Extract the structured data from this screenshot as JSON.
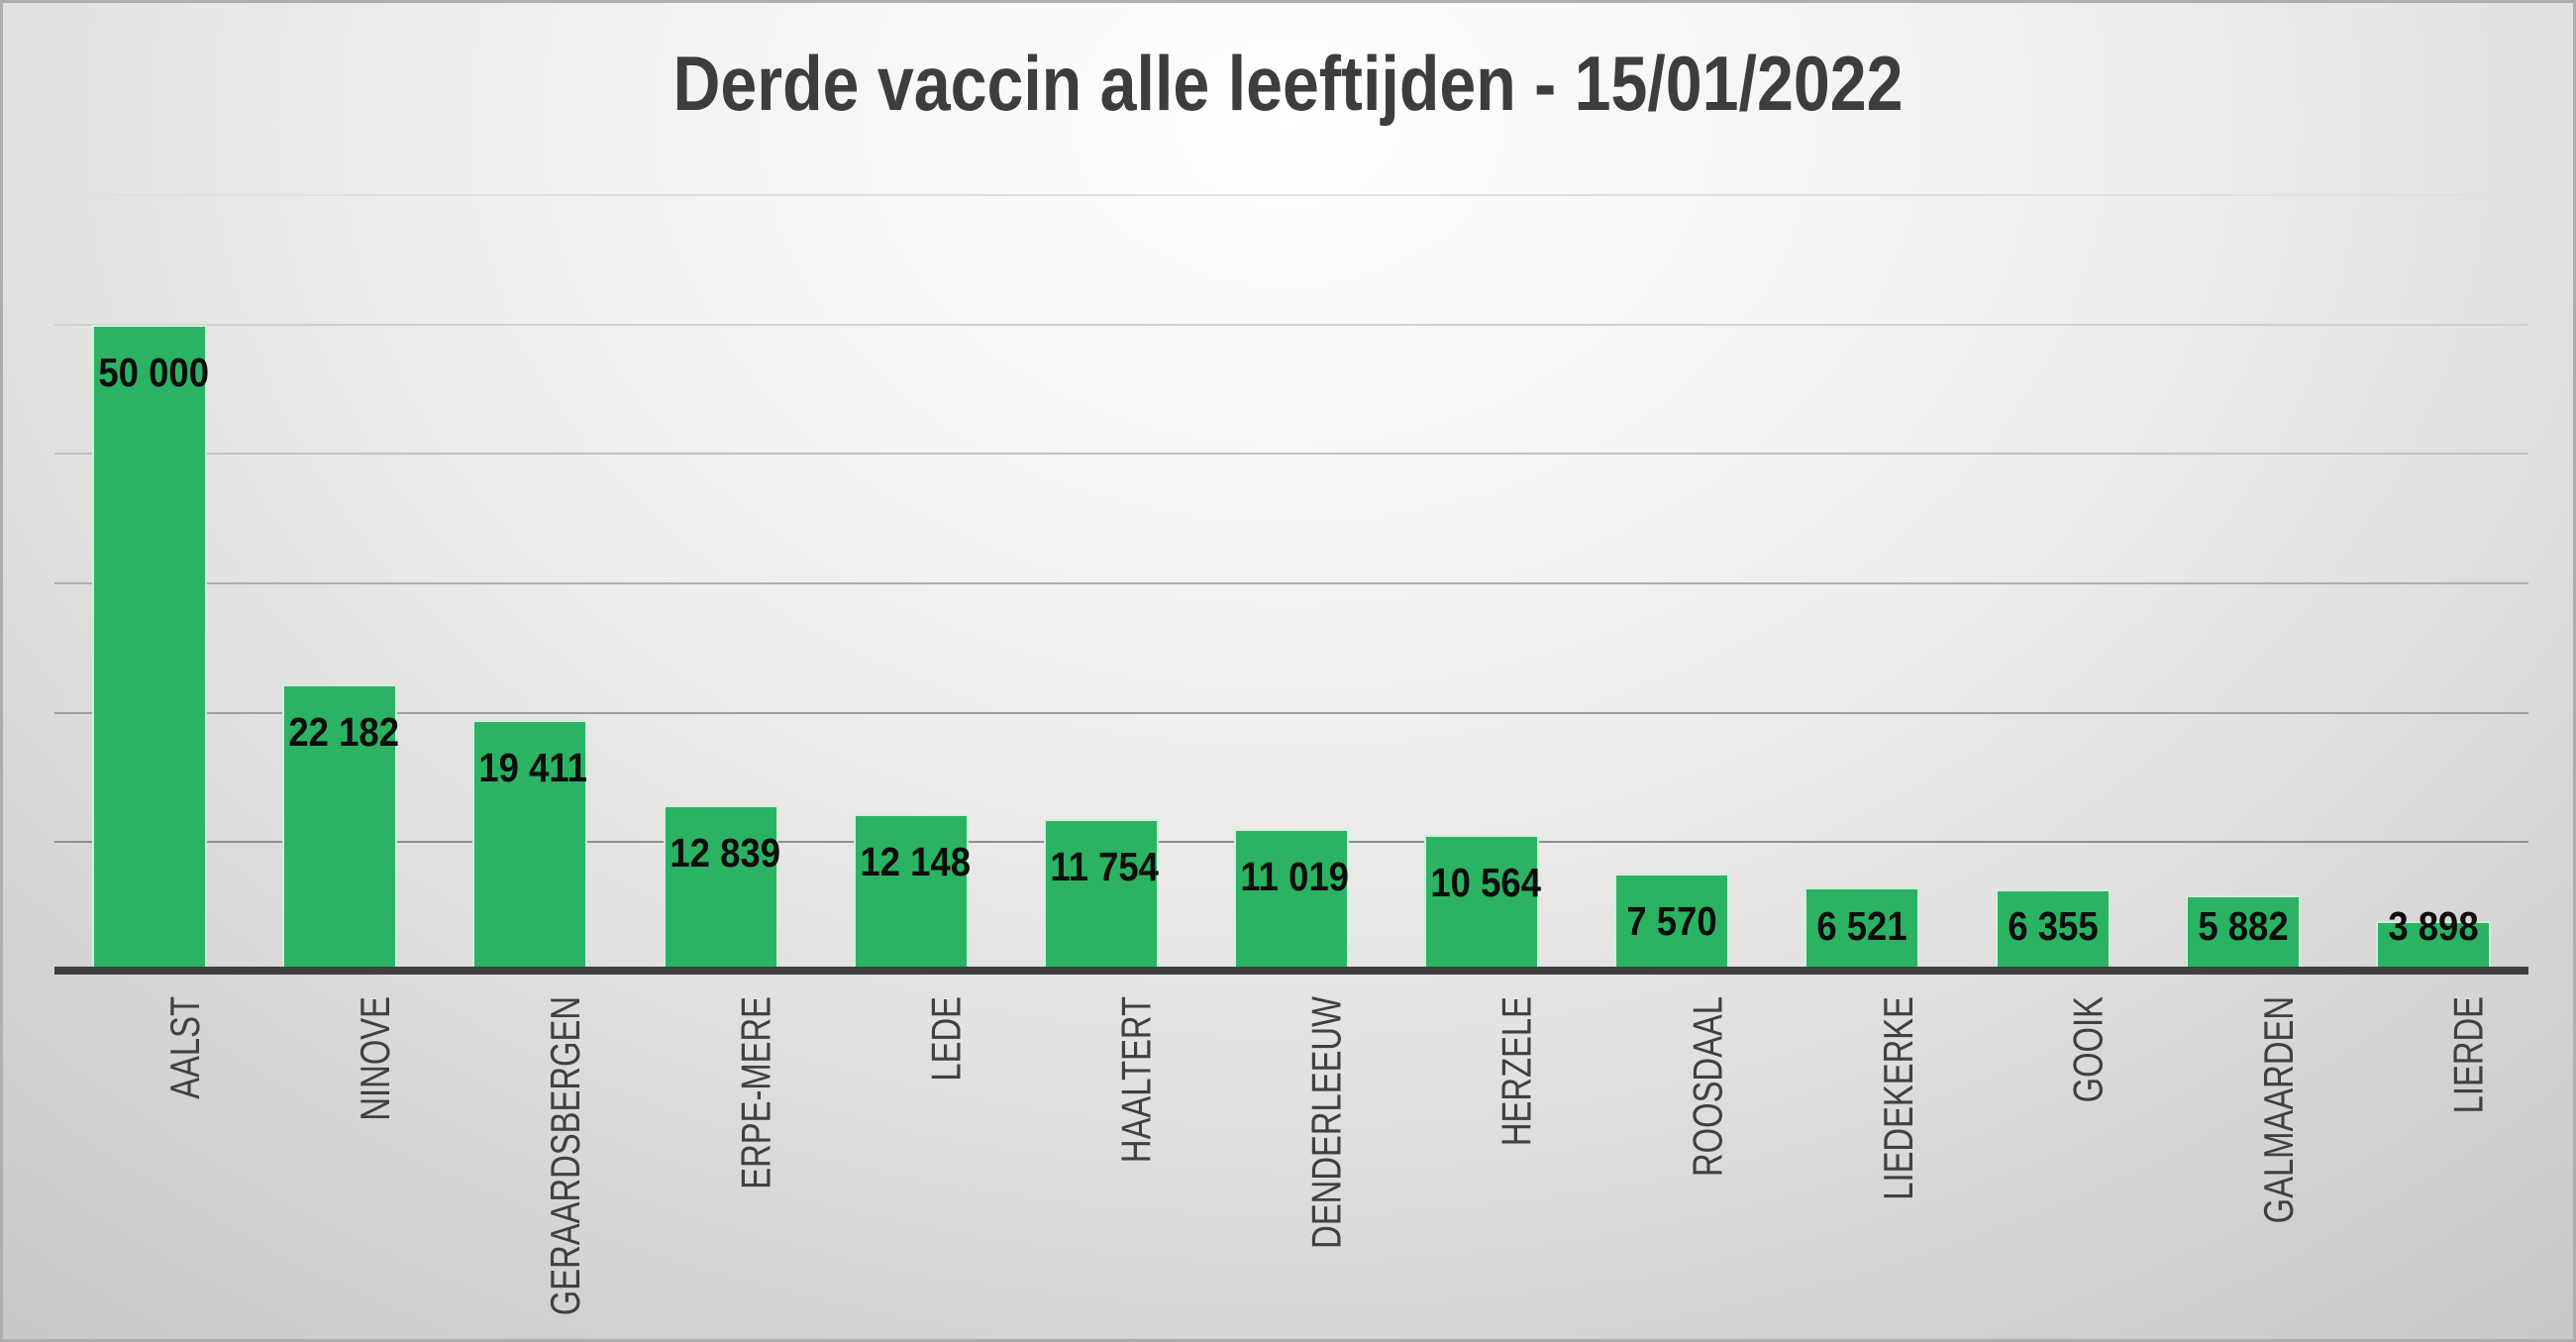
{
  "chart_data": {
    "type": "bar",
    "title": "Derde vaccin alle leeftijden - 15/01/2022",
    "categories": [
      "AALST",
      "NINOVE",
      "GERAARDSBERGEN",
      "ERPE-MERE",
      "LEDE",
      "HAALTERT",
      "DENDERLEEUW",
      "HERZELE",
      "ROOSDAAL",
      "LIEDEKERKE",
      "GOOIK",
      "GALMAARDEN",
      "LIERDE"
    ],
    "values": [
      50000,
      22182,
      19411,
      12839,
      12148,
      11754,
      11019,
      10564,
      7570,
      6521,
      6355,
      5882,
      3898
    ],
    "value_labels": [
      "50 000",
      "22 182",
      "19 411",
      "12 839",
      "12 148",
      "11 754",
      "11 019",
      "10 564",
      "7 570",
      "6 521",
      "6 355",
      "5 882",
      "3 898"
    ],
    "xlabel": "",
    "ylabel": "",
    "ylim": [
      0,
      60000
    ],
    "gridline_interval": 10000,
    "y_tick_labels_visible": false,
    "legend": "none",
    "grid": "horizontal",
    "data_label_position": "inside_end",
    "category_label_rotation": "90deg-bottom-to-top",
    "colors": {
      "bar_fill": "#2bb363",
      "bar_edge": "#e6f6ec",
      "title_text": "#3d3d3d",
      "value_label_text": "#0d0d0d",
      "category_label_text": "#404040",
      "axis_line": "#3f3f3f",
      "gridline_bottom": "#8f8f8f",
      "gridline_top": "#e0e0e0",
      "background_center": "#ffffff",
      "background_edge": "#c2c2c2"
    }
  }
}
